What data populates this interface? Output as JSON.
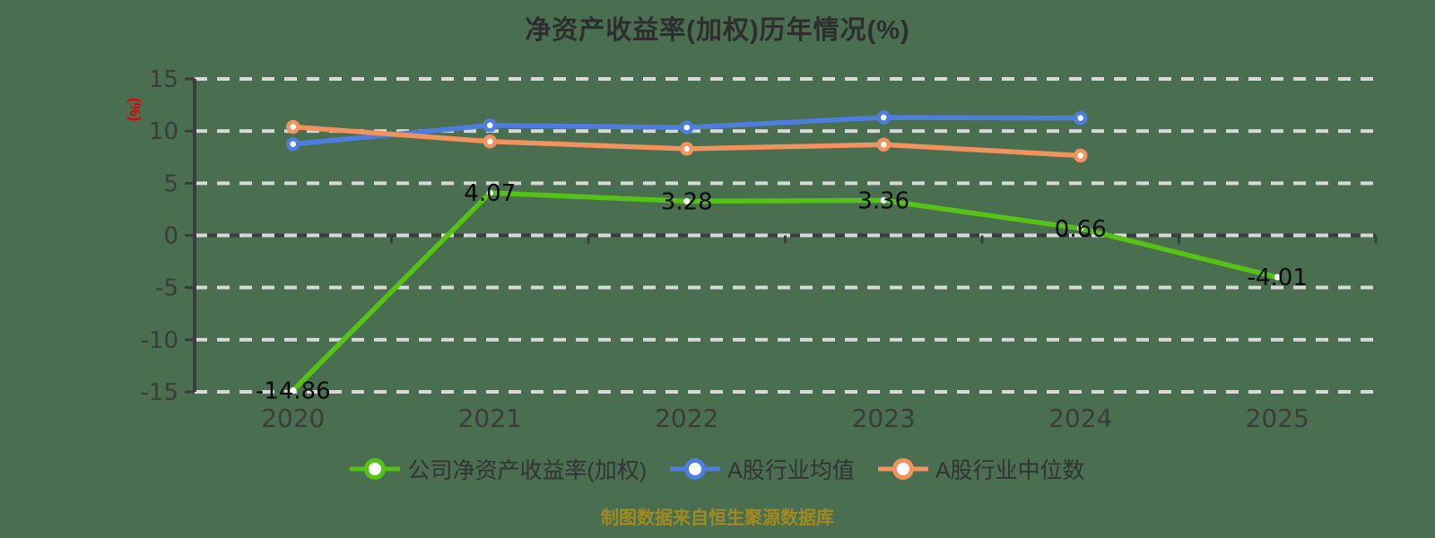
{
  "header": {
    "title": "净资产收益率(加权)历年情况(%)"
  },
  "y_axis": {
    "unit_label": "(%)",
    "unit_color": "#e60000"
  },
  "footer": {
    "source_note": "制图数据来自恒生聚源数据库"
  },
  "colors": {
    "background": "#4a6e50",
    "grid": "#d8d8d8",
    "axis": "#3c3c3c",
    "axis_text": "#3c3c3c",
    "data_label": "#0a0a0a",
    "company": "#55c315",
    "industry_mean": "#4e7de0",
    "industry_median": "#f2925e"
  },
  "legend": [
    {
      "label": "公司净资产收益率(加权)",
      "color": "#55c315",
      "marker": "line-circle"
    },
    {
      "label": "A股行业均值",
      "color": "#4e7de0",
      "marker": "line-circle"
    },
    {
      "label": "A股行业中位数",
      "color": "#f2925e",
      "marker": "line-circle"
    }
  ],
  "chart_data": {
    "type": "line",
    "title": "净资产收益率(加权)历年情况(%)",
    "categories": [
      "2020",
      "2021",
      "2022",
      "2023",
      "2024",
      "2025"
    ],
    "series": [
      {
        "name": "公司净资产收益率(加权)",
        "color": "#55c315",
        "values": [
          -14.86,
          4.07,
          3.28,
          3.36,
          0.66,
          -4.01
        ],
        "data_labels": [
          "-14.86",
          "4.07",
          "3.28",
          "3.36",
          "0.66",
          "-4.01"
        ],
        "show_labels": true,
        "marker": "small-white-dot"
      },
      {
        "name": "A股行业均值",
        "color": "#4e7de0",
        "values": [
          8.75,
          10.55,
          10.35,
          11.3,
          11.25,
          null
        ],
        "show_labels": false,
        "marker": "white-circle-ring"
      },
      {
        "name": "A股行业中位数",
        "color": "#f2925e",
        "values": [
          10.4,
          9.0,
          8.3,
          8.7,
          7.65,
          null
        ],
        "show_labels": false,
        "marker": "white-circle-ring"
      }
    ],
    "ylabel": "(%)",
    "ylim": [
      -15,
      15
    ],
    "yticks": [
      15,
      10,
      5,
      0,
      -5,
      -10,
      -15
    ],
    "grid": "dashed-horizontal",
    "legend_position": "bottom",
    "x_tick_style": "category-boundaries"
  }
}
